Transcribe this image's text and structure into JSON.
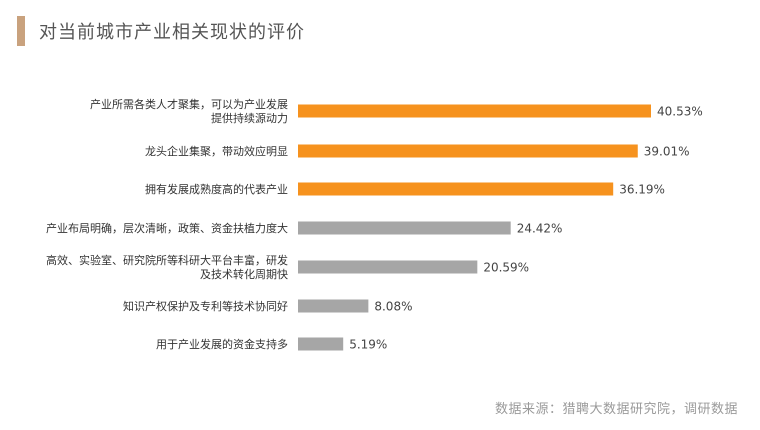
{
  "chart_data": {
    "type": "bar",
    "orientation": "horizontal",
    "title": "对当前城市产业相关现状的评价",
    "categories": [
      [
        "产业所需各类人才聚集，可以为产业发展",
        "提供持续源动力"
      ],
      [
        "龙头企业集聚，带动效应明显"
      ],
      [
        "拥有发展成熟度高的代表产业"
      ],
      [
        "产业布局明确，层次清晰，政策、资金扶植力度大"
      ],
      [
        "高效、实验室、研究院所等科研大平台丰富，研发",
        "及技术转化周期快"
      ],
      [
        "知识产权保护及专利等技术协同好"
      ],
      [
        "用于产业发展的资金支持多"
      ]
    ],
    "values": [
      40.53,
      39.01,
      36.19,
      24.42,
      20.59,
      8.08,
      5.19
    ],
    "value_labels": [
      "40.53%",
      "39.01%",
      "36.19%",
      "24.42%",
      "20.59%",
      "8.08%",
      "5.19%"
    ],
    "bar_colors": [
      "#f6921e",
      "#f6921e",
      "#f6921e",
      "#a6a6a6",
      "#a6a6a6",
      "#a6a6a6",
      "#a6a6a6"
    ],
    "xlim": [
      0,
      40.53
    ],
    "grid": false,
    "xlabel": "",
    "ylabel": ""
  },
  "source": "数据来源：猎聘大数据研究院，调研数据"
}
